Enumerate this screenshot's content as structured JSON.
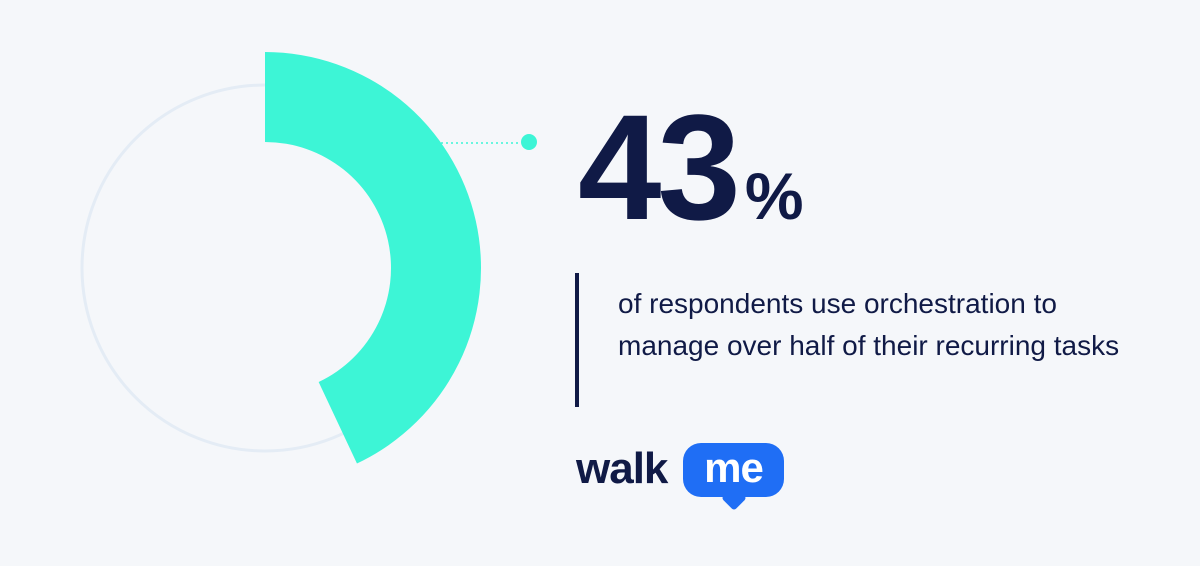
{
  "chart_data": {
    "type": "pie",
    "variant": "donut",
    "values": [
      43
    ],
    "total": 100,
    "value_label": "43",
    "unit_label": "%",
    "description": "of respondents use orchestration to manage over half of their recurring tasks"
  },
  "colors": {
    "background": "#f5f7fa",
    "accent": "#3df5d6",
    "track": "#e4ecf5",
    "text": "#101a46",
    "brand_blue": "#1f6ef5"
  },
  "brand": {
    "word": "walk",
    "bubble": "me"
  }
}
